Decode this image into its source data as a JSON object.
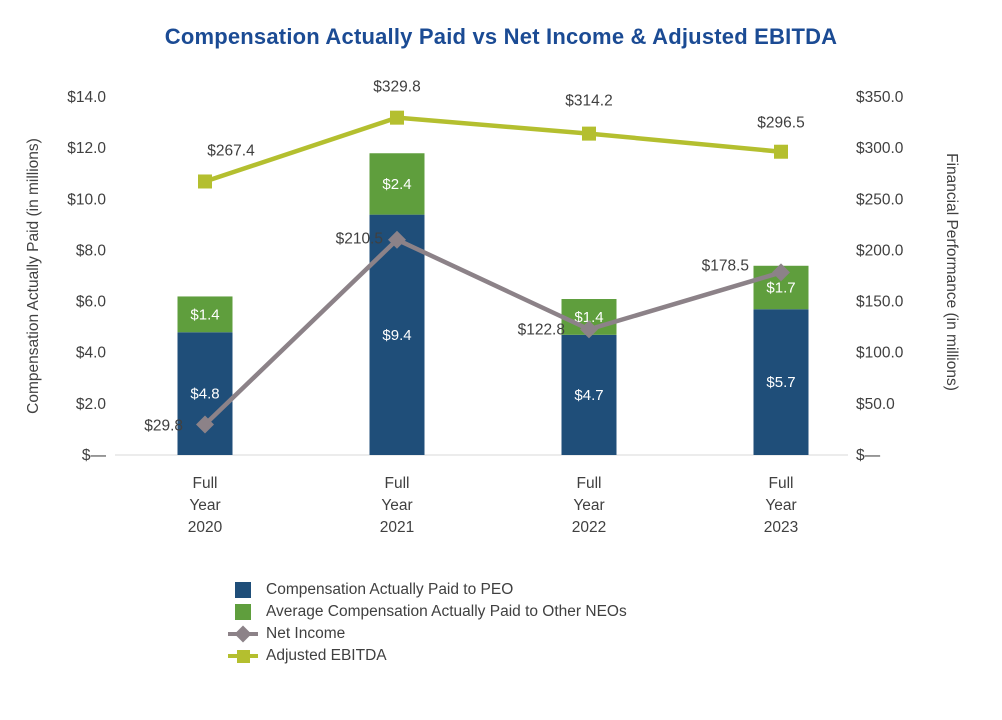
{
  "chart_data": {
    "type": "bar",
    "subtype": "stacked-column-with-lines",
    "title": "Compensation Actually Paid vs Net Income & Adjusted EBITDA",
    "categories": [
      "Full Year 2020",
      "Full Year 2021",
      "Full Year 2022",
      "Full Year 2023"
    ],
    "bar_series": [
      {
        "name": "Compensation Actually Paid to PEO",
        "values": [
          4.8,
          9.4,
          4.7,
          5.7
        ],
        "labels": [
          "$4.8",
          "$9.4",
          "$4.7",
          "$5.7"
        ],
        "color": "#1f4e79",
        "axis": "left"
      },
      {
        "name": "Average Compensation Actually Paid to Other NEOs",
        "values": [
          1.4,
          2.4,
          1.4,
          1.7
        ],
        "labels": [
          "$1.4",
          "$2.4",
          "$1.4",
          "$1.7"
        ],
        "color": "#5f9e3d",
        "axis": "left"
      }
    ],
    "line_series": [
      {
        "name": "Net Income",
        "values": [
          29.8,
          210.5,
          122.8,
          178.5
        ],
        "labels": [
          "$29.8",
          "$210.5",
          "$122.8",
          "$178.5"
        ],
        "color": "#8c8288",
        "marker": "diamond",
        "axis": "right"
      },
      {
        "name": "Adjusted EBITDA",
        "values": [
          267.4,
          329.8,
          314.2,
          296.5
        ],
        "labels": [
          "$267.4",
          "$329.8",
          "$314.2",
          "$296.5"
        ],
        "color": "#b4bf2f",
        "marker": "square",
        "axis": "right"
      }
    ],
    "left_axis": {
      "title": "Compensation Actually Paid (in millions)",
      "min": 0,
      "max": 14,
      "ticks": [
        "$—",
        "$2.0",
        "$4.0",
        "$6.0",
        "$8.0",
        "$10.0",
        "$12.0",
        "$14.0"
      ]
    },
    "right_axis": {
      "title": "Financial Performance (in millions)",
      "min": 0,
      "max": 350,
      "ticks": [
        "$—",
        "$50.0",
        "$100.0",
        "$150.0",
        "$200.0",
        "$250.0",
        "$300.0",
        "$350.0"
      ]
    },
    "legend_position": "bottom-left",
    "grid": false,
    "colors": {
      "title_text": "#1b4b94",
      "axis_text": "#404040",
      "baseline": "#d9d9d9"
    }
  }
}
